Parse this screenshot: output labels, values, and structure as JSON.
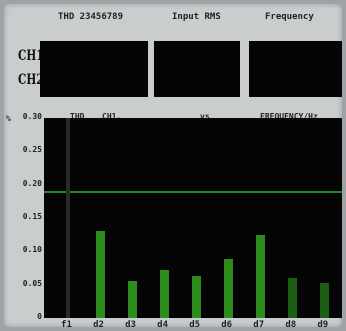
{
  "header": {
    "col1": "THD 23456789",
    "col2": "Input RMS",
    "col3": "Frequency"
  },
  "rows": [
    {
      "label": "CH1"
    },
    {
      "label": "CH2"
    }
  ],
  "chart_header": {
    "unit": "%",
    "thd": "THD",
    "channel": "CH1,",
    "vs": "vs",
    "xunit": "FREQUENCY/Hz"
  },
  "chart_data": {
    "type": "bar",
    "categories": [
      "f1",
      "d2",
      "d3",
      "d4",
      "d5",
      "d6",
      "d7",
      "d8",
      "d9"
    ],
    "values": [
      0,
      0.13,
      0.055,
      0.072,
      0.063,
      0.088,
      0.125,
      0.06,
      0.052
    ],
    "ylim": [
      0,
      0.3
    ],
    "yticks": [
      "0.30",
      "0.25",
      "0.20",
      "0.15",
      "0.10",
      "0.05",
      "0"
    ],
    "limit": 0.19,
    "colors": {
      "bar": "#2e8c1c",
      "line": "#1f8a24",
      "background": "#050505"
    }
  }
}
